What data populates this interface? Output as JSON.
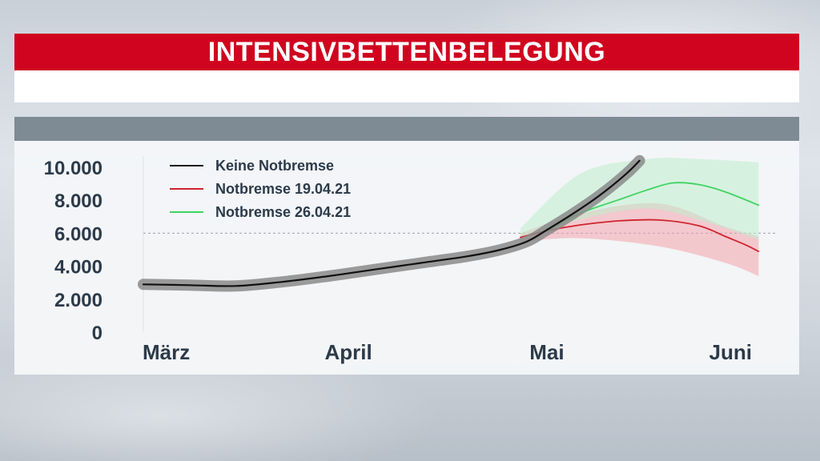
{
  "header": {
    "title": "INTENSIVBETTENBELEGUNG"
  },
  "colors": {
    "brand_red": "#d0041f",
    "series_black": "#111111",
    "series_red": "#d1232e",
    "series_green": "#3fd461",
    "band_grey": "#8a8a8a",
    "band_red": "#f2a3ab",
    "band_green": "#bfeccc",
    "text": "#2c3a4a"
  },
  "chart_data": {
    "type": "line",
    "title": "INTENSIVBETTENBELEGUNG",
    "xlabel": "",
    "ylabel": "",
    "ylim": [
      0,
      10000
    ],
    "yticks": [
      0,
      2000,
      4000,
      6000,
      8000,
      10000
    ],
    "ytick_labels": [
      "0",
      "2.000",
      "4.000",
      "6.000",
      "8.000",
      "10.000"
    ],
    "x_domain": [
      "2021-03-01",
      "2021-06-01"
    ],
    "xticks": [
      "2021-03-01",
      "2021-04-01",
      "2021-05-01",
      "2021-06-01"
    ],
    "xtick_labels": [
      "März",
      "April",
      "Mai",
      "Juni"
    ],
    "reference_line": {
      "y": 6000,
      "style": "dashed"
    },
    "legend_position": "top-left",
    "grid": false,
    "series": [
      {
        "name": "Keine Notbremse",
        "color": "#111111",
        "band_color": "#8a8a8a",
        "points": [
          [
            "2021-03-01",
            2900
          ],
          [
            "2021-03-08",
            2850
          ],
          [
            "2021-03-15",
            2800
          ],
          [
            "2021-03-22",
            3050
          ],
          [
            "2021-03-29",
            3400
          ],
          [
            "2021-04-05",
            3800
          ],
          [
            "2021-04-12",
            4200
          ],
          [
            "2021-04-19",
            4600
          ],
          [
            "2021-04-24",
            5000
          ],
          [
            "2021-04-28",
            5500
          ],
          [
            "2021-05-01",
            6200
          ],
          [
            "2021-05-05",
            7200
          ],
          [
            "2021-05-09",
            8300
          ],
          [
            "2021-05-13",
            9600
          ],
          [
            "2021-05-15",
            10400
          ]
        ],
        "band": [
          [
            "2021-03-01",
            2700,
            3100
          ],
          [
            "2021-03-15",
            2600,
            3000
          ],
          [
            "2021-04-05",
            3600,
            4000
          ],
          [
            "2021-04-24",
            4800,
            5200
          ],
          [
            "2021-05-01",
            5950,
            6450
          ],
          [
            "2021-05-09",
            8000,
            8600
          ],
          [
            "2021-05-15",
            10100,
            10700
          ]
        ]
      },
      {
        "name": "Notbremse 19.04.21",
        "color": "#d1232e",
        "band_color": "#f2a3ab",
        "points": [
          [
            "2021-04-27",
            5750
          ],
          [
            "2021-05-01",
            6150
          ],
          [
            "2021-05-06",
            6500
          ],
          [
            "2021-05-12",
            6750
          ],
          [
            "2021-05-18",
            6800
          ],
          [
            "2021-05-24",
            6450
          ],
          [
            "2021-05-28",
            5800
          ],
          [
            "2021-05-31",
            5300
          ],
          [
            "2021-06-02",
            4900
          ]
        ],
        "band": [
          [
            "2021-04-27",
            5500,
            6000
          ],
          [
            "2021-05-06",
            5700,
            7200
          ],
          [
            "2021-05-18",
            5200,
            7800
          ],
          [
            "2021-05-28",
            4200,
            6400
          ],
          [
            "2021-06-02",
            3400,
            5800
          ]
        ]
      },
      {
        "name": "Notbremse 26.04.21",
        "color": "#3fd461",
        "band_color": "#bfeccc",
        "points": [
          [
            "2021-05-01",
            6150
          ],
          [
            "2021-05-06",
            7200
          ],
          [
            "2021-05-12",
            8050
          ],
          [
            "2021-05-16",
            8600
          ],
          [
            "2021-05-20",
            9050
          ],
          [
            "2021-05-24",
            8950
          ],
          [
            "2021-05-28",
            8500
          ],
          [
            "2021-06-02",
            7700
          ]
        ],
        "band": [
          [
            "2021-04-27",
            5600,
            6300
          ],
          [
            "2021-05-06",
            6800,
            9600
          ],
          [
            "2021-05-16",
            7500,
            10500
          ],
          [
            "2021-05-24",
            6800,
            10500
          ],
          [
            "2021-06-02",
            5600,
            10300
          ]
        ]
      }
    ]
  }
}
